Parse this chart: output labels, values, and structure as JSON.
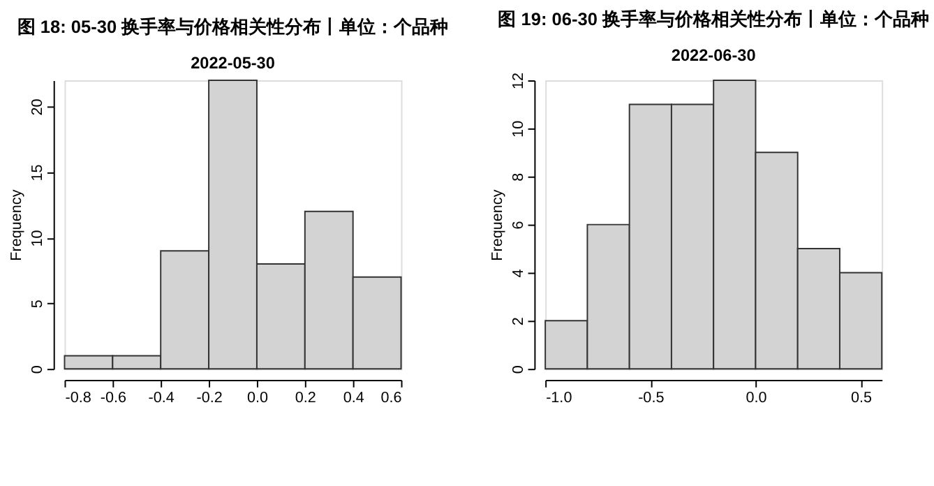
{
  "chart_data": [
    {
      "type": "histogram",
      "title": "图 18: 05-30 换手率与价格相关性分布丨单位：个品种",
      "subtitle": "2022-05-30",
      "ylabel": "Frequency",
      "bins": [
        -0.8,
        -0.6,
        -0.4,
        -0.2,
        0.0,
        0.2,
        0.4,
        0.6
      ],
      "values": [
        1,
        1,
        9,
        22,
        8,
        12,
        7
      ],
      "color": "#d3d3d3",
      "xlim": [
        -0.8,
        0.6
      ],
      "xticks": [
        {
          "value": -0.8,
          "label": "-0.8"
        },
        {
          "value": -0.6,
          "label": "-0.6"
        },
        {
          "value": -0.4,
          "label": "-0.4"
        },
        {
          "value": -0.2,
          "label": "-0.2"
        },
        {
          "value": 0.0,
          "label": "0.0"
        },
        {
          "value": 0.2,
          "label": "0.2"
        },
        {
          "value": 0.4,
          "label": "0.4"
        },
        {
          "value": 0.6,
          "label": "0.6"
        }
      ],
      "ylim": [
        0,
        22
      ],
      "yticks": [
        0,
        5,
        10,
        15,
        20
      ],
      "grid": false
    },
    {
      "type": "histogram",
      "title": "图 19: 06-30 换手率与价格相关性分布丨单位：个品种",
      "subtitle": "2022-06-30",
      "ylabel": "Frequency",
      "bins": [
        -1.0,
        -0.8,
        -0.6,
        -0.4,
        -0.2,
        0.0,
        0.2,
        0.4,
        0.6
      ],
      "values": [
        2,
        6,
        11,
        11,
        12,
        9,
        5,
        4
      ],
      "color": "#d3d3d3",
      "xlim": [
        -1.0,
        0.6
      ],
      "xticks": [
        {
          "value": -1.0,
          "label": "-1.0"
        },
        {
          "value": -0.5,
          "label": "-0.5"
        },
        {
          "value": 0.0,
          "label": "0.0"
        },
        {
          "value": 0.5,
          "label": "0.5"
        }
      ],
      "ylim": [
        0,
        12
      ],
      "yticks": [
        0,
        2,
        4,
        6,
        8,
        10,
        12
      ],
      "grid": false
    }
  ]
}
